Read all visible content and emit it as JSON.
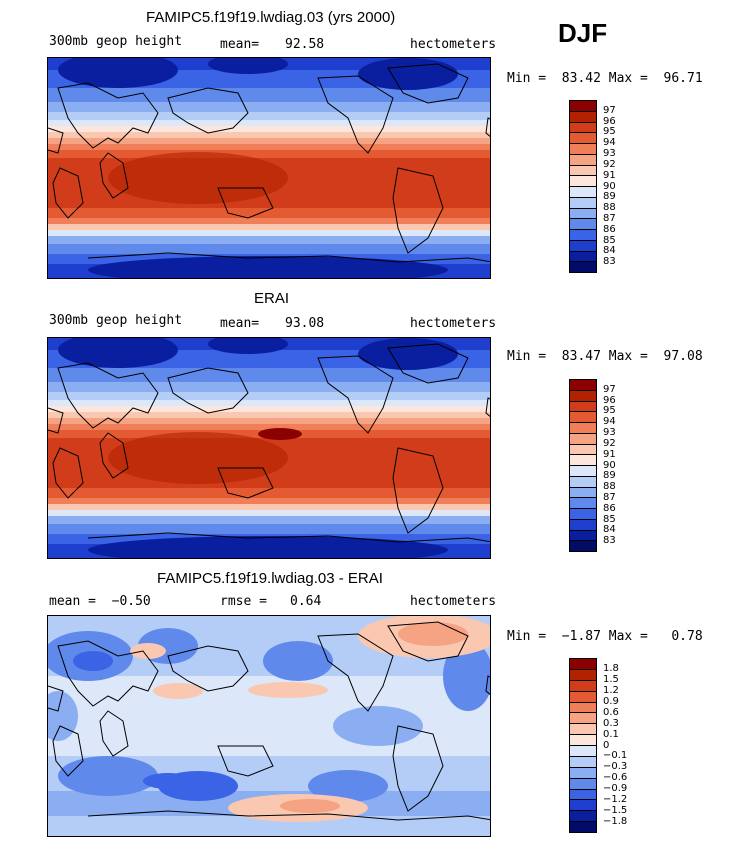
{
  "season": "DJF",
  "chart_data": [
    {
      "type": "heatmap",
      "title": "FAMIPC5.f19f19.lwdiag.03 (yrs 2000)",
      "variable": "300mb geop height",
      "stat_label": "mean=",
      "stat_value": "92.58",
      "units": "hectometers",
      "min_max_text": "Min =  83.42 Max =  96.71",
      "colorbar": {
        "labels": [
          "97",
          "96",
          "95",
          "94",
          "93",
          "92",
          "91",
          "90",
          "89",
          "88",
          "87",
          "86",
          "85",
          "84",
          "83"
        ],
        "colors": [
          "#8b0000",
          "#b22200",
          "#d13d1a",
          "#e45a32",
          "#f07f59",
          "#f6a384",
          "#fac7b0",
          "#fde7dc",
          "#dce8fa",
          "#b4cdf7",
          "#8aaef1",
          "#6089ec",
          "#3a63e6",
          "#1e3fce",
          "#0a1f9f",
          "#020c66"
        ]
      }
    },
    {
      "type": "heatmap",
      "title": "ERAI",
      "variable": "300mb geop height",
      "stat_label": "mean=",
      "stat_value": "93.08",
      "units": "hectometers",
      "min_max_text": "Min =  83.47 Max =  97.08",
      "colorbar": {
        "labels": [
          "97",
          "96",
          "95",
          "94",
          "93",
          "92",
          "91",
          "90",
          "89",
          "88",
          "87",
          "86",
          "85",
          "84",
          "83"
        ],
        "colors": [
          "#8b0000",
          "#b22200",
          "#d13d1a",
          "#e45a32",
          "#f07f59",
          "#f6a384",
          "#fac7b0",
          "#fde7dc",
          "#dce8fa",
          "#b4cdf7",
          "#8aaef1",
          "#6089ec",
          "#3a63e6",
          "#1e3fce",
          "#0a1f9f",
          "#020c66"
        ]
      }
    },
    {
      "type": "heatmap",
      "title": "FAMIPC5.f19f19.lwdiag.03 - ERAI",
      "variable_left": "mean =  −0.50",
      "stat_label": "rmse =",
      "stat_value": "0.64",
      "units": "hectometers",
      "min_max_text": "Min =  −1.87 Max =   0.78",
      "colorbar": {
        "labels": [
          "1.8",
          "1.5",
          "1.2",
          "0.9",
          "0.6",
          "0.3",
          "0.1",
          "0",
          "−0.1",
          "−0.3",
          "−0.6",
          "−0.9",
          "−1.2",
          "−1.5",
          "−1.8"
        ],
        "colors": [
          "#8b0000",
          "#b22200",
          "#d13d1a",
          "#e45a32",
          "#f07f59",
          "#f6a384",
          "#fac7b0",
          "#fde7dc",
          "#dce8fa",
          "#b4cdf7",
          "#8aaef1",
          "#6089ec",
          "#3a63e6",
          "#1e3fce",
          "#0a1f9f",
          "#020c66"
        ]
      }
    }
  ]
}
